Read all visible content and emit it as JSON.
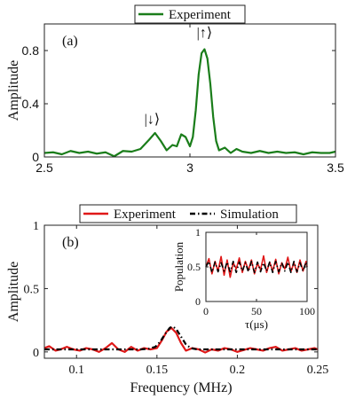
{
  "chart_data": [
    {
      "type": "line",
      "panel_label": "(a)",
      "xlabel": "",
      "ylabel": "Amplitude",
      "xlim": [
        2.5,
        3.5
      ],
      "ylim": [
        0,
        1.0
      ],
      "x_ticks": [
        2.5,
        3,
        3.5
      ],
      "x_tick_labels": [
        "2.5",
        "3",
        "3.5"
      ],
      "y_ticks": [
        0,
        0.4,
        0.8
      ],
      "y_tick_labels": [
        "0",
        "0.4",
        "0.8"
      ],
      "grid": false,
      "legend": {
        "placement": "top-center",
        "entries": [
          {
            "name": "Experiment",
            "color": "#1a7d1a",
            "style": "solid"
          }
        ]
      },
      "annotations": [
        {
          "text": "|↓⟩",
          "x": 2.87,
          "y": 0.25
        },
        {
          "text": "|↑⟩",
          "x": 3.05,
          "y": 0.9
        }
      ],
      "series": [
        {
          "name": "Experiment",
          "color": "#1a7d1a",
          "style": "solid",
          "x": [
            2.5,
            2.53,
            2.56,
            2.59,
            2.62,
            2.65,
            2.68,
            2.71,
            2.74,
            2.77,
            2.8,
            2.83,
            2.86,
            2.88,
            2.9,
            2.92,
            2.94,
            2.955,
            2.97,
            2.985,
            3.0,
            3.01,
            3.02,
            3.03,
            3.04,
            3.05,
            3.06,
            3.07,
            3.08,
            3.09,
            3.1,
            3.12,
            3.14,
            3.16,
            3.18,
            3.21,
            3.24,
            3.27,
            3.3,
            3.33,
            3.36,
            3.39,
            3.42,
            3.45,
            3.48,
            3.5
          ],
          "values": [
            0.03,
            0.035,
            0.02,
            0.045,
            0.03,
            0.04,
            0.025,
            0.035,
            0.005,
            0.045,
            0.04,
            0.06,
            0.13,
            0.18,
            0.12,
            0.05,
            0.09,
            0.08,
            0.17,
            0.15,
            0.08,
            0.15,
            0.35,
            0.62,
            0.78,
            0.81,
            0.74,
            0.55,
            0.3,
            0.12,
            0.05,
            0.07,
            0.03,
            0.06,
            0.04,
            0.03,
            0.045,
            0.03,
            0.04,
            0.03,
            0.035,
            0.02,
            0.035,
            0.03,
            0.03,
            0.04
          ]
        }
      ]
    },
    {
      "type": "line",
      "panel_label": "(b)",
      "xlabel": "Frequency (MHz)",
      "ylabel": "Amplitude",
      "xlim": [
        0.08,
        0.25
      ],
      "ylim": [
        -0.05,
        1.0
      ],
      "x_ticks": [
        0.1,
        0.15,
        0.2,
        0.25
      ],
      "x_tick_labels": [
        "0.1",
        "0.15",
        "0.2",
        "0.25"
      ],
      "y_ticks": [
        0,
        0.5,
        1
      ],
      "y_tick_labels": [
        "0",
        "0.5",
        "1"
      ],
      "grid": false,
      "legend": {
        "placement": "top-center",
        "entries": [
          {
            "name": "Experiment",
            "color": "#e01818",
            "style": "solid"
          },
          {
            "name": "Simulation",
            "color": "#000000",
            "style": "dash-dot"
          }
        ]
      },
      "series": [
        {
          "name": "Experiment",
          "color": "#e01818",
          "style": "solid",
          "x": [
            0.08,
            0.083,
            0.087,
            0.09,
            0.094,
            0.098,
            0.102,
            0.106,
            0.11,
            0.114,
            0.118,
            0.122,
            0.126,
            0.13,
            0.134,
            0.138,
            0.142,
            0.146,
            0.15,
            0.153,
            0.156,
            0.159,
            0.162,
            0.165,
            0.168,
            0.172,
            0.176,
            0.18,
            0.184,
            0.188,
            0.192,
            0.196,
            0.2,
            0.204,
            0.208,
            0.212,
            0.216,
            0.22,
            0.224,
            0.228,
            0.232,
            0.236,
            0.24,
            0.244,
            0.248,
            0.25
          ],
          "values": [
            0.03,
            0.045,
            0.01,
            0.02,
            0.04,
            0.02,
            0.01,
            0.03,
            0.02,
            0.0,
            0.03,
            0.07,
            0.02,
            0.0,
            0.04,
            0.01,
            0.03,
            0.02,
            0.03,
            0.09,
            0.16,
            0.19,
            0.15,
            0.07,
            0.01,
            0.03,
            0.02,
            -0.005,
            0.02,
            0.01,
            0.03,
            0.02,
            0.0,
            0.015,
            0.03,
            0.02,
            0.01,
            0.03,
            0.04,
            0.01,
            0.02,
            0.03,
            0.01,
            0.02,
            0.03,
            0.02
          ]
        },
        {
          "name": "Simulation",
          "color": "#000000",
          "style": "dash-dot",
          "x": [
            0.08,
            0.09,
            0.1,
            0.11,
            0.12,
            0.13,
            0.14,
            0.145,
            0.149,
            0.152,
            0.155,
            0.158,
            0.16,
            0.162,
            0.165,
            0.168,
            0.171,
            0.175,
            0.18,
            0.19,
            0.2,
            0.21,
            0.22,
            0.23,
            0.24,
            0.25
          ],
          "values": [
            0.02,
            0.02,
            0.02,
            0.02,
            0.02,
            0.02,
            0.02,
            0.025,
            0.04,
            0.08,
            0.14,
            0.19,
            0.2,
            0.18,
            0.12,
            0.06,
            0.03,
            0.02,
            0.02,
            0.02,
            0.02,
            0.02,
            0.02,
            0.02,
            0.02,
            0.02
          ]
        }
      ]
    },
    {
      "type": "line",
      "panel_label": "inset",
      "xlabel": "τ(μs)",
      "ylabel": "Population",
      "xlim": [
        0,
        100
      ],
      "ylim": [
        0,
        1
      ],
      "x_ticks": [
        0,
        50,
        100
      ],
      "x_tick_labels": [
        "0",
        "50",
        "100"
      ],
      "y_ticks": [
        0,
        0.5,
        1
      ],
      "y_tick_labels": [
        "0",
        "0.5",
        "1"
      ],
      "grid": false,
      "series": [
        {
          "name": "Experiment",
          "color": "#e01818",
          "style": "solid",
          "x": [
            0,
            3,
            6,
            9,
            12,
            15,
            18,
            21,
            24,
            27,
            30,
            33,
            36,
            39,
            42,
            45,
            48,
            51,
            54,
            57,
            60,
            63,
            66,
            69,
            72,
            75,
            78,
            81,
            84,
            87,
            90,
            93,
            96,
            99,
            100
          ],
          "values": [
            0.5,
            0.62,
            0.4,
            0.58,
            0.44,
            0.65,
            0.38,
            0.6,
            0.35,
            0.56,
            0.47,
            0.63,
            0.42,
            0.58,
            0.45,
            0.6,
            0.4,
            0.55,
            0.46,
            0.66,
            0.42,
            0.57,
            0.44,
            0.61,
            0.4,
            0.56,
            0.47,
            0.64,
            0.43,
            0.56,
            0.42,
            0.6,
            0.44,
            0.58,
            0.5
          ]
        },
        {
          "name": "Simulation",
          "color": "#000000",
          "style": "dash-dot",
          "x": [
            0,
            3,
            6,
            9,
            12,
            15,
            18,
            21,
            24,
            27,
            30,
            33,
            36,
            39,
            42,
            45,
            48,
            51,
            54,
            57,
            60,
            63,
            66,
            69,
            72,
            75,
            78,
            81,
            84,
            87,
            90,
            93,
            96,
            99,
            100
          ],
          "values": [
            0.5,
            0.58,
            0.42,
            0.57,
            0.43,
            0.56,
            0.44,
            0.57,
            0.43,
            0.58,
            0.42,
            0.57,
            0.44,
            0.56,
            0.43,
            0.58,
            0.42,
            0.57,
            0.43,
            0.56,
            0.44,
            0.57,
            0.42,
            0.58,
            0.43,
            0.56,
            0.44,
            0.57,
            0.42,
            0.58,
            0.43,
            0.56,
            0.44,
            0.57,
            0.5
          ]
        }
      ]
    }
  ]
}
